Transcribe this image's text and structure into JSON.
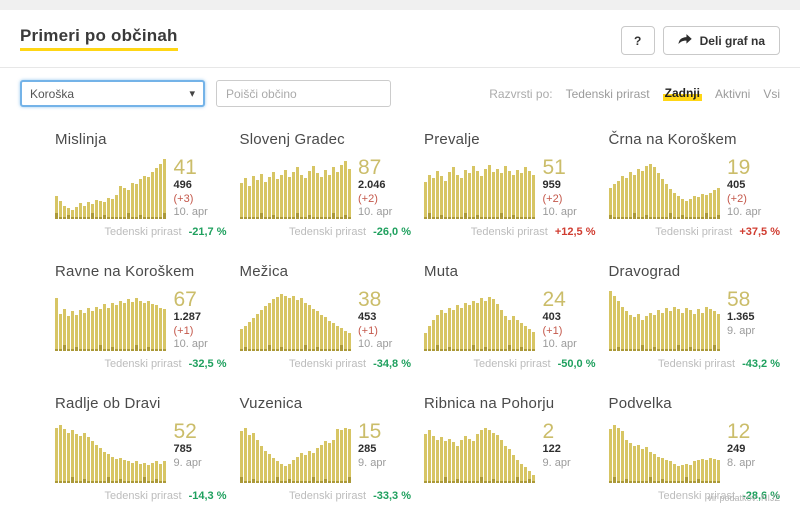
{
  "header": {
    "title": "Primeri po občinah",
    "help_button": "?",
    "share_button": "Deli graf na"
  },
  "filters": {
    "region_selected": "Koroška",
    "search_placeholder": "Poišči občino",
    "sort_label": "Razvrsti po:",
    "sort_options": [
      {
        "label": "Tedenski prirast",
        "active": false
      },
      {
        "label": "Zadnji",
        "active": true
      },
      {
        "label": "Aktivni",
        "active": false
      },
      {
        "label": "Vsi",
        "active": false
      }
    ]
  },
  "labels": {
    "growth_label": "Tedenski prirast"
  },
  "colors": {
    "accent_yellow": "#ffd615",
    "bar_yellow": "#d7c564",
    "bar_dark": "#ab9939",
    "big_number": "#cbbd6a",
    "growth_down_green": "#1fa05e",
    "growth_up_red": "#d03c30",
    "delta_red": "#c4584b"
  },
  "chart_type": "bar",
  "municipalities": [
    {
      "name": "Mislinja",
      "active": "41",
      "total": "496",
      "delta": "(+3)",
      "date": "10. apr",
      "growth": "-21,7 %",
      "bars": [
        0.38,
        0.3,
        0.22,
        0.18,
        0.15,
        0.2,
        0.26,
        0.22,
        0.28,
        0.25,
        0.32,
        0.3,
        0.28,
        0.35,
        0.33,
        0.4,
        0.55,
        0.52,
        0.48,
        0.6,
        0.58,
        0.66,
        0.72,
        0.7,
        0.78,
        0.85,
        0.92,
        1.0
      ]
    },
    {
      "name": "Slovenj Gradec",
      "active": "87",
      "total": "2.046",
      "delta": "(+2)",
      "date": "10. apr",
      "growth": "-26,0 %",
      "bars": [
        0.6,
        0.68,
        0.55,
        0.72,
        0.65,
        0.75,
        0.62,
        0.7,
        0.78,
        0.66,
        0.74,
        0.82,
        0.7,
        0.78,
        0.86,
        0.74,
        0.68,
        0.8,
        0.88,
        0.76,
        0.7,
        0.82,
        0.74,
        0.86,
        0.78,
        0.9,
        0.96,
        0.84
      ]
    },
    {
      "name": "Prevalje",
      "active": "51",
      "total": "959",
      "delta": "(+2)",
      "date": "10. apr",
      "growth": "+12,5 %",
      "bars": [
        0.62,
        0.74,
        0.68,
        0.8,
        0.72,
        0.64,
        0.78,
        0.86,
        0.74,
        0.68,
        0.82,
        0.76,
        0.88,
        0.8,
        0.72,
        0.84,
        0.9,
        0.78,
        0.84,
        0.76,
        0.88,
        0.8,
        0.74,
        0.82,
        0.76,
        0.86,
        0.8,
        0.74
      ]
    },
    {
      "name": "Črna na Koroškem",
      "active": "19",
      "total": "405",
      "delta": "(+2)",
      "date": "10. apr",
      "growth": "+37,5 %",
      "bars": [
        0.52,
        0.58,
        0.64,
        0.72,
        0.68,
        0.78,
        0.74,
        0.84,
        0.8,
        0.88,
        0.92,
        0.86,
        0.76,
        0.66,
        0.58,
        0.5,
        0.44,
        0.38,
        0.34,
        0.3,
        0.34,
        0.38,
        0.36,
        0.42,
        0.4,
        0.44,
        0.48,
        0.52
      ]
    },
    {
      "name": "Ravne na Koroškem",
      "active": "67",
      "total": "1.287",
      "delta": "(+1)",
      "date": "10. apr",
      "growth": "-32,5 %",
      "bars": [
        0.88,
        0.62,
        0.7,
        0.58,
        0.66,
        0.6,
        0.68,
        0.64,
        0.72,
        0.66,
        0.74,
        0.7,
        0.78,
        0.72,
        0.8,
        0.76,
        0.84,
        0.8,
        0.86,
        0.82,
        0.88,
        0.84,
        0.8,
        0.84,
        0.78,
        0.76,
        0.72,
        0.7
      ]
    },
    {
      "name": "Mežica",
      "active": "38",
      "total": "453",
      "delta": "(+1)",
      "date": "10. apr",
      "growth": "-34,8 %",
      "bars": [
        0.36,
        0.42,
        0.48,
        0.55,
        0.62,
        0.68,
        0.75,
        0.8,
        0.86,
        0.9,
        0.95,
        0.92,
        0.88,
        0.92,
        0.85,
        0.88,
        0.8,
        0.76,
        0.7,
        0.66,
        0.6,
        0.56,
        0.5,
        0.46,
        0.42,
        0.38,
        0.34,
        0.3
      ]
    },
    {
      "name": "Muta",
      "active": "24",
      "total": "403",
      "delta": "(+1)",
      "date": "10. apr",
      "growth": "-50,0 %",
      "bars": [
        0.3,
        0.42,
        0.52,
        0.6,
        0.68,
        0.64,
        0.72,
        0.68,
        0.76,
        0.72,
        0.8,
        0.76,
        0.84,
        0.8,
        0.88,
        0.84,
        0.9,
        0.86,
        0.78,
        0.68,
        0.58,
        0.52,
        0.58,
        0.52,
        0.46,
        0.42,
        0.36,
        0.32
      ]
    },
    {
      "name": "Dravograd",
      "active": "58",
      "total": "1.365",
      "delta": null,
      "date": "9. apr",
      "growth": "-43,2 %",
      "bars": [
        1.0,
        0.92,
        0.84,
        0.74,
        0.66,
        0.6,
        0.56,
        0.62,
        0.52,
        0.58,
        0.64,
        0.6,
        0.68,
        0.64,
        0.72,
        0.66,
        0.74,
        0.7,
        0.64,
        0.72,
        0.68,
        0.62,
        0.7,
        0.64,
        0.74,
        0.7,
        0.66,
        0.62
      ]
    },
    {
      "name": "Radlje ob Dravi",
      "active": "52",
      "total": "785",
      "delta": null,
      "date": "9. apr",
      "growth": "-14,3 %",
      "bars": [
        0.92,
        0.96,
        0.9,
        0.84,
        0.88,
        0.82,
        0.78,
        0.84,
        0.76,
        0.7,
        0.64,
        0.58,
        0.52,
        0.48,
        0.44,
        0.4,
        0.42,
        0.38,
        0.36,
        0.34,
        0.36,
        0.32,
        0.34,
        0.3,
        0.34,
        0.36,
        0.32,
        0.36
      ]
    },
    {
      "name": "Vuzenica",
      "active": "15",
      "total": "285",
      "delta": null,
      "date": "9. apr",
      "growth": "-33,3 %",
      "bars": [
        0.86,
        0.92,
        0.8,
        0.84,
        0.72,
        0.62,
        0.54,
        0.48,
        0.42,
        0.36,
        0.32,
        0.28,
        0.32,
        0.38,
        0.44,
        0.5,
        0.46,
        0.54,
        0.5,
        0.58,
        0.64,
        0.7,
        0.66,
        0.72,
        0.9,
        0.88,
        0.92,
        0.9
      ]
    },
    {
      "name": "Ribnica na Pohorju",
      "active": "2",
      "total": "122",
      "delta": null,
      "date": "9. apr",
      "growth": null,
      "bars": [
        0.82,
        0.88,
        0.78,
        0.72,
        0.76,
        0.7,
        0.74,
        0.68,
        0.62,
        0.72,
        0.78,
        0.74,
        0.7,
        0.82,
        0.88,
        0.92,
        0.88,
        0.84,
        0.8,
        0.72,
        0.62,
        0.56,
        0.46,
        0.38,
        0.32,
        0.26,
        0.2,
        0.14
      ]
    },
    {
      "name": "Podvelka",
      "active": "12",
      "total": "249",
      "delta": null,
      "date": "8. apr",
      "growth": "-28,6 %",
      "bars": [
        0.9,
        0.96,
        0.92,
        0.86,
        0.72,
        0.66,
        0.62,
        0.64,
        0.56,
        0.6,
        0.52,
        0.48,
        0.44,
        0.42,
        0.38,
        0.36,
        0.32,
        0.28,
        0.3,
        0.32,
        0.3,
        0.36,
        0.38,
        0.4,
        0.38,
        0.42,
        0.4,
        0.38
      ]
    }
  ],
  "footer": {
    "source": "vir podatkov: NIJZ"
  }
}
